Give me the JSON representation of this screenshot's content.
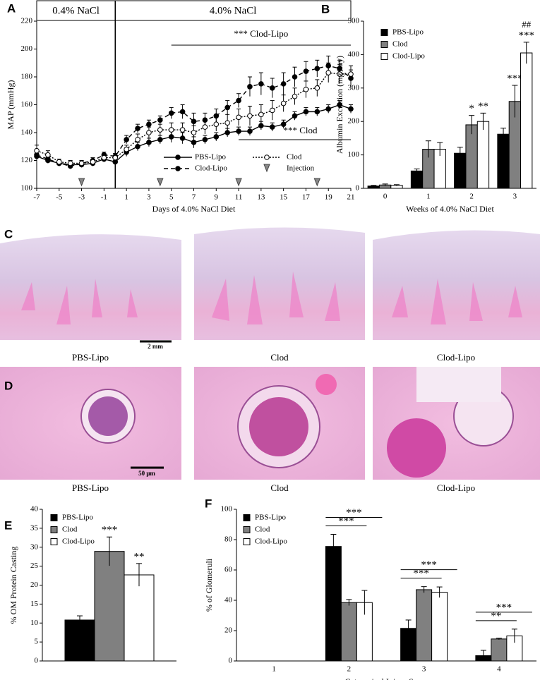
{
  "panel_labels": [
    "A",
    "B",
    "C",
    "D",
    "E",
    "F"
  ],
  "histology": {
    "C": {
      "captions": [
        "PBS-Lipo",
        "Clod",
        "Clod-Lipo"
      ],
      "scale_bar": "2 mm"
    },
    "D": {
      "captions": [
        "PBS-Lipo",
        "Clod",
        "Clod-Lipo"
      ],
      "scale_bar": "50 μm"
    }
  },
  "chart_data": [
    {
      "type": "line",
      "header_labels": [
        "0.4% NaCl",
        "4.0% NaCl"
      ],
      "xlabel": "Days of 4.0% NaCl Diet",
      "ylabel": "MAP (mmHg)",
      "x": [
        -7,
        -6,
        -5,
        -4,
        -3,
        -2,
        -1,
        0,
        1,
        2,
        3,
        4,
        5,
        6,
        7,
        8,
        9,
        10,
        11,
        12,
        13,
        14,
        15,
        16,
        17,
        18,
        19,
        20,
        21
      ],
      "series": [
        {
          "name": "PBS-Lipo",
          "color": "#000000",
          "dash": "solid",
          "marker": "filled",
          "values": [
            123,
            120,
            118,
            117,
            117,
            118,
            121,
            119,
            126,
            130,
            133,
            135,
            137,
            136,
            133,
            135,
            137,
            140,
            141,
            141,
            145,
            144,
            146,
            152,
            155,
            155,
            157,
            160,
            157
          ],
          "errors": [
            2,
            2,
            2,
            2,
            2,
            2,
            2,
            3,
            3,
            3,
            3,
            3,
            4,
            4,
            4,
            3,
            3,
            3,
            3,
            3,
            3,
            3,
            3,
            3,
            3,
            3,
            3,
            3,
            3
          ]
        },
        {
          "name": "Clod-Lipo",
          "color": "#000000",
          "dash": "dashed",
          "marker": "filled",
          "values": [
            124,
            121,
            118,
            116,
            118,
            120,
            124,
            123,
            135,
            143,
            146,
            149,
            154,
            155,
            148,
            149,
            152,
            158,
            163,
            173,
            175,
            172,
            175,
            180,
            184,
            186,
            188,
            186,
            179
          ],
          "errors": [
            2,
            2,
            2,
            2,
            2,
            2,
            2,
            2,
            3,
            3,
            3,
            3,
            4,
            5,
            6,
            5,
            5,
            5,
            5,
            7,
            8,
            7,
            8,
            7,
            7,
            6,
            7,
            6,
            6
          ]
        },
        {
          "name": "Clod",
          "color": "#000000",
          "dash": "dotted",
          "marker": "open",
          "values": [
            127,
            124,
            119,
            118,
            118,
            119,
            122,
            122,
            128,
            135,
            140,
            142,
            142,
            142,
            140,
            144,
            146,
            147,
            151,
            152,
            153,
            156,
            161,
            166,
            171,
            172,
            183,
            182,
            182
          ],
          "errors": [
            4,
            3,
            2,
            2,
            2,
            2,
            3,
            3,
            3,
            4,
            4,
            4,
            5,
            5,
            5,
            5,
            5,
            6,
            6,
            7,
            7,
            7,
            6,
            6,
            6,
            6,
            7,
            7,
            6
          ]
        }
      ],
      "injection_label": "Injection",
      "injection_days": [
        -3,
        4,
        11,
        18
      ],
      "annotations": [
        "*** Clod-Lipo",
        "*** Clod"
      ],
      "xlim": [
        -7,
        21
      ],
      "xticks": [
        -7,
        -5,
        -3,
        -1,
        1,
        3,
        5,
        7,
        9,
        11,
        13,
        15,
        17,
        19,
        21
      ],
      "ylim": [
        100,
        220
      ],
      "yticks": [
        100,
        120,
        140,
        160,
        180,
        200,
        220
      ]
    },
    {
      "type": "bar",
      "xlabel": "Weeks of 4.0% NaCl Diet",
      "ylabel": "Albumin Excretion (mg/day)",
      "categories": [
        "0",
        "1",
        "2",
        "3"
      ],
      "series": [
        {
          "name": "PBS-Lipo",
          "color": "#000000",
          "values": [
            7,
            52,
            105,
            162
          ],
          "errors": [
            2,
            6,
            18,
            18
          ],
          "significance": [
            null,
            null,
            null,
            null
          ]
        },
        {
          "name": "Clod",
          "color": "#808080",
          "values": [
            10,
            117,
            190,
            260
          ],
          "errors": [
            3,
            25,
            28,
            48
          ],
          "significance": [
            null,
            null,
            "*",
            "***"
          ]
        },
        {
          "name": "Clod-Lipo",
          "color": "#ffffff",
          "values": [
            9,
            117,
            200,
            405
          ],
          "errors": [
            2,
            20,
            25,
            32
          ],
          "significance": [
            null,
            null,
            "**",
            "***"
          ],
          "hash_marks": [
            null,
            null,
            null,
            "##"
          ]
        }
      ],
      "ylim": [
        0,
        500
      ],
      "yticks": [
        0,
        100,
        200,
        300,
        400,
        500
      ]
    },
    {
      "type": "bar",
      "ylabel": "% OM Protein Casting",
      "categories": [
        null
      ],
      "series": [
        {
          "name": "PBS-Lipo",
          "color": "#000000",
          "values": [
            10.8
          ],
          "errors": [
            1.1
          ],
          "significance": [
            null
          ]
        },
        {
          "name": "Clod",
          "color": "#808080",
          "values": [
            28.9
          ],
          "errors": [
            3.8
          ],
          "significance": [
            "***"
          ]
        },
        {
          "name": "Clod-Lipo",
          "color": "#ffffff",
          "values": [
            22.7
          ],
          "errors": [
            3.0
          ],
          "significance": [
            "**"
          ]
        }
      ],
      "ylim": [
        0,
        40
      ],
      "yticks": [
        0,
        5,
        10,
        15,
        20,
        25,
        30,
        35,
        40
      ]
    },
    {
      "type": "bar",
      "xlabel": "Categorical Injury Score",
      "ylabel": "% of Glomeruli",
      "categories": [
        "1",
        "2",
        "3",
        "4"
      ],
      "series": [
        {
          "name": "PBS-Lipo",
          "color": "#000000",
          "values": [
            0,
            75.5,
            21.5,
            3.5
          ],
          "errors": [
            0,
            8,
            5.5,
            3.5
          ]
        },
        {
          "name": "Clod",
          "color": "#808080",
          "values": [
            0,
            38.5,
            47,
            14.5
          ],
          "errors": [
            0,
            2,
            2,
            0.5
          ]
        },
        {
          "name": "Clod-Lipo",
          "color": "#ffffff",
          "values": [
            0,
            38.5,
            45.3,
            16.5
          ],
          "errors": [
            0,
            8,
            3.5,
            4.5
          ]
        }
      ],
      "comparisons": [
        {
          "category": 1,
          "from": 0,
          "to": 1,
          "label": "***"
        },
        {
          "category": 1,
          "from": 0,
          "to": 2,
          "label": "***"
        },
        {
          "category": 2,
          "from": 0,
          "to": 1,
          "label": "***"
        },
        {
          "category": 2,
          "from": 0,
          "to": 2,
          "label": "***"
        },
        {
          "category": 3,
          "from": 0,
          "to": 1,
          "label": "**"
        },
        {
          "category": 3,
          "from": 0,
          "to": 2,
          "label": "***"
        }
      ],
      "ylim": [
        0,
        100
      ],
      "yticks": [
        0,
        20,
        40,
        60,
        80,
        100
      ]
    }
  ]
}
